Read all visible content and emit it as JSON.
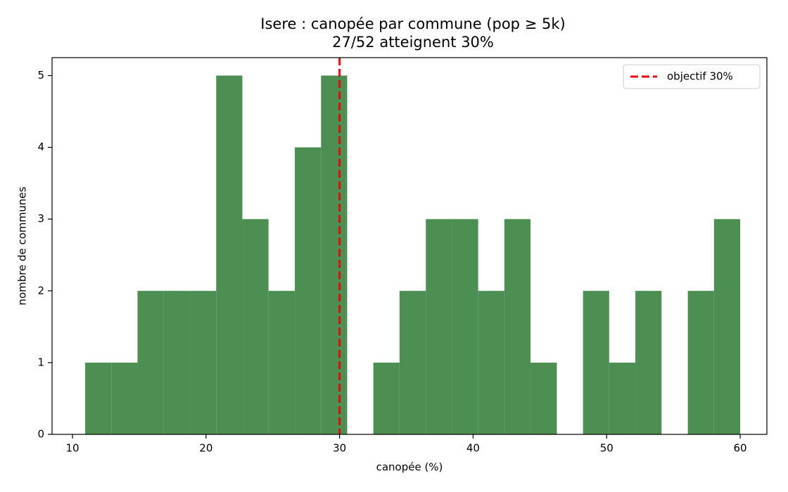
{
  "chart_data": {
    "type": "histogram",
    "title": "Isere : canopée par commune (pop ≥ 5k)",
    "subtitle": "27/52 atteignent 30%",
    "xlabel": "canopée (%)",
    "ylabel": "nombre de communes",
    "bins": [
      10.95,
      12.91,
      14.87,
      16.84,
      18.8,
      20.76,
      22.72,
      24.68,
      26.65,
      28.61,
      30.57,
      32.53,
      34.49,
      36.46,
      38.42,
      40.38,
      42.34,
      44.3,
      46.27,
      48.23,
      50.19,
      52.15,
      54.11,
      56.08,
      58.04,
      60.0
    ],
    "values": [
      1,
      1,
      2,
      2,
      2,
      5,
      3,
      2,
      4,
      5,
      0,
      1,
      2,
      3,
      3,
      2,
      3,
      1,
      0,
      2,
      1,
      2,
      0,
      2,
      3
    ],
    "color": "#4d8f52",
    "xlim": [
      8.47,
      62.0
    ],
    "ylim": [
      0,
      5.25
    ],
    "xticks": [
      10,
      20,
      30,
      40,
      50,
      60
    ],
    "yticks": [
      0,
      1,
      2,
      3,
      4,
      5
    ],
    "reference_line": {
      "value": 30,
      "label": "objectif 30%",
      "color": "#e8000b"
    },
    "legend": "upper right"
  }
}
